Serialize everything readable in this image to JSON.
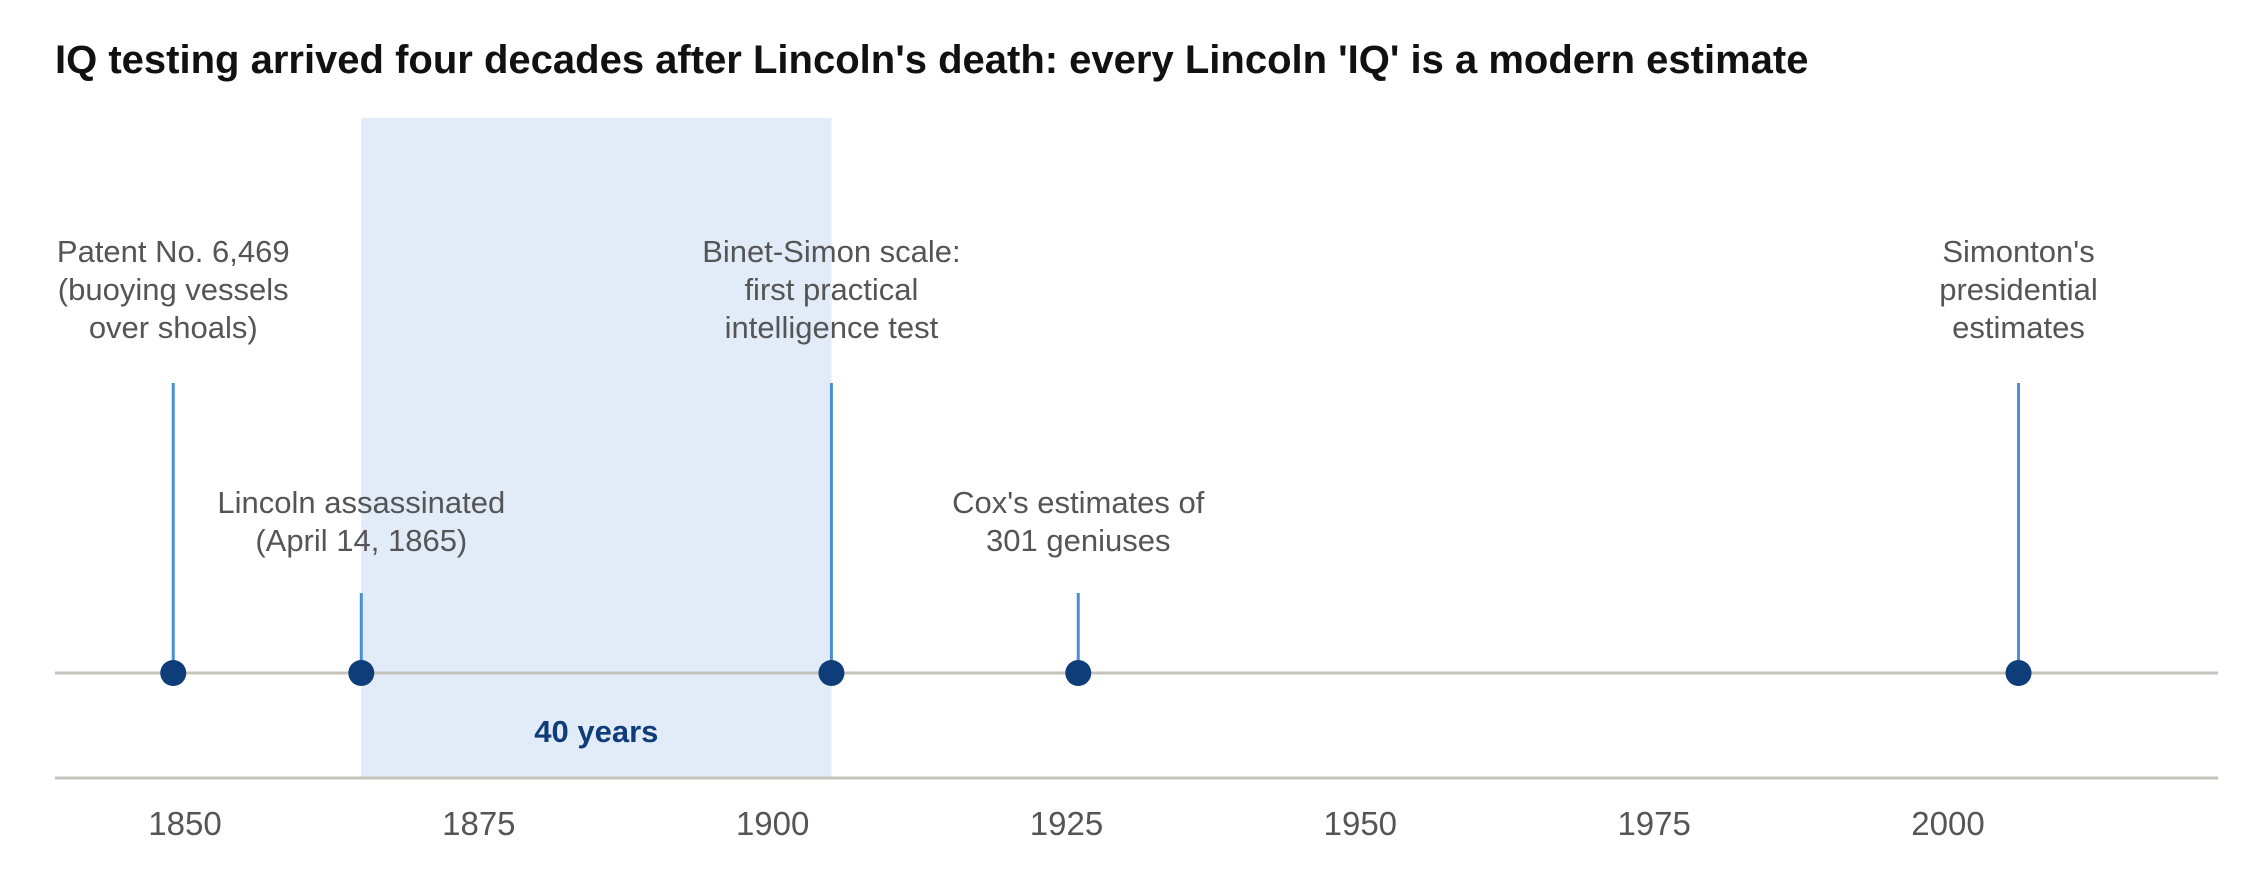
{
  "title": "IQ testing arrived four decades after Lincoln's death: every Lincoln 'IQ' is a modern estimate",
  "chart_data": {
    "type": "timeline",
    "title": "IQ testing arrived four decades after Lincoln's death: every Lincoln 'IQ' is a modern estimate",
    "xlim": [
      1839,
      2223
    ],
    "x_ticks": [
      1850,
      1875,
      1900,
      1925,
      1950,
      1975,
      2000
    ],
    "events": [
      {
        "year": 1849,
        "label_lines": [
          "Patent No. 6,469",
          "(buoying vessels",
          "over shoals)"
        ],
        "tier": "high"
      },
      {
        "year": 1865,
        "label_lines": [
          "Lincoln assassinated",
          "(April 14, 1865)"
        ],
        "tier": "low"
      },
      {
        "year": 1905,
        "label_lines": [
          "Binet-Simon scale:",
          "first practical",
          "intelligence test"
        ],
        "tier": "high"
      },
      {
        "year": 1926,
        "label_lines": [
          "Cox's estimates of",
          "301 geniuses"
        ],
        "tier": "low"
      },
      {
        "year": 2006,
        "label_lines": [
          "Simonton's",
          "presidential",
          "estimates"
        ],
        "tier": "high"
      }
    ],
    "highlight_span": {
      "start": 1865,
      "end": 1905,
      "label": "40 years"
    },
    "grid": false
  },
  "colors": {
    "marker": "#0e3d7a",
    "stem": "#4a90d9",
    "span_fill": "#e2ecf9",
    "span_label": "#0e3d7a",
    "axis_line": "#c4c4bc",
    "text": "#555555"
  }
}
